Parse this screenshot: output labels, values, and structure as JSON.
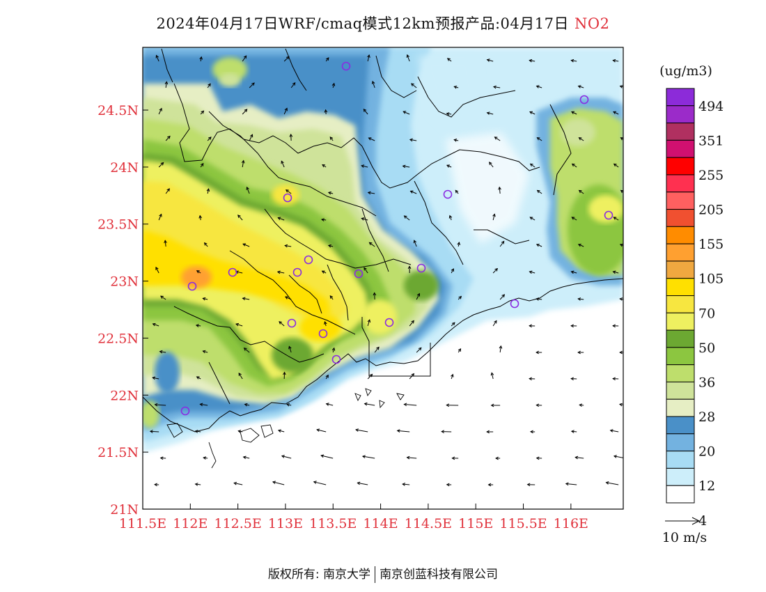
{
  "title": {
    "main": "2024年04月17日WRF/cmaq模式12km预报产品:04月17日",
    "species": "NO2",
    "species_color": "#e0303a"
  },
  "map": {
    "lat_labels": [
      "24.5N",
      "24N",
      "23.5N",
      "23N",
      "22.5N",
      "22N",
      "21.5N",
      "21N"
    ],
    "lon_labels": [
      "111.5E",
      "112E",
      "112.5E",
      "113E",
      "113.5E",
      "114E",
      "114.5E",
      "115E",
      "115.5E",
      "116E"
    ],
    "label_color": "#e0303a",
    "lat_range": [
      21,
      25.05
    ],
    "lon_range": [
      111.5,
      116.55
    ],
    "stations_marker_color": "#8a2be2"
  },
  "legend": {
    "unit": "(ug/m3)",
    "labels": [
      "494",
      "351",
      "255",
      "205",
      "155",
      "105",
      "70",
      "50",
      "36",
      "28",
      "20",
      "12",
      "4"
    ],
    "colors": [
      "#8c2bd9",
      "#9b2bc9",
      "#b03060",
      "#d01070",
      "#ff0000",
      "#ff3050",
      "#ff6060",
      "#f05030",
      "#ff8c00",
      "#ffa030",
      "#f0a840",
      "#ffe000",
      "#f7e640",
      "#eef060",
      "#6ca832",
      "#8cc640",
      "#bede6c",
      "#cfe39a",
      "#e6eec4",
      "#4a90c8",
      "#73b2e0",
      "#a8dcf4",
      "#cdeefa",
      "#ffffff"
    ],
    "wind_ref": "10 m/s"
  },
  "copyright": {
    "left": "版权所有: 南京大学",
    "right": "南京创蓝科技有限公司"
  }
}
